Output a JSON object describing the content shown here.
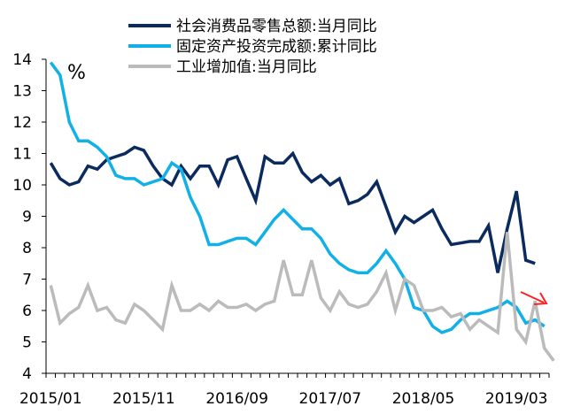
{
  "chart_data": {
    "type": "line",
    "unit": "%",
    "ylim": [
      4,
      14
    ],
    "yticks": [
      4,
      5,
      6,
      7,
      8,
      9,
      10,
      11,
      12,
      13,
      14
    ],
    "x_start": "2015/01",
    "x_end": "2019/06",
    "xtick_labels": [
      "2015/01",
      "2015/11",
      "2016/09",
      "2017/07",
      "2018/05",
      "2019/03"
    ],
    "legend_position": "top",
    "grid": false,
    "series": [
      {
        "name": "社会消费品零售总额:当月同比",
        "color": "#0b2a5e",
        "points": [
          [
            "2015/01",
            10.7
          ],
          [
            "2015/02",
            10.2
          ],
          [
            "2015/03",
            10.0
          ],
          [
            "2015/04",
            10.1
          ],
          [
            "2015/05",
            10.6
          ],
          [
            "2015/06",
            10.5
          ],
          [
            "2015/07",
            10.8
          ],
          [
            "2015/08",
            10.9
          ],
          [
            "2015/09",
            11.0
          ],
          [
            "2015/10",
            11.2
          ],
          [
            "2015/11",
            11.1
          ],
          [
            "2015/12",
            10.6
          ],
          [
            "2016/01",
            10.2
          ],
          [
            "2016/02",
            10.0
          ],
          [
            "2016/03",
            10.6
          ],
          [
            "2016/04",
            10.2
          ],
          [
            "2016/05",
            10.6
          ],
          [
            "2016/06",
            10.6
          ],
          [
            "2016/07",
            10.0
          ],
          [
            "2016/08",
            10.8
          ],
          [
            "2016/09",
            10.9
          ],
          [
            "2016/10",
            10.2
          ],
          [
            "2016/11",
            9.5
          ],
          [
            "2016/12",
            10.9
          ],
          [
            "2017/01",
            10.7
          ],
          [
            "2017/02",
            10.7
          ],
          [
            "2017/03",
            11.0
          ],
          [
            "2017/04",
            10.4
          ],
          [
            "2017/05",
            10.1
          ],
          [
            "2017/06",
            10.3
          ],
          [
            "2017/07",
            10.0
          ],
          [
            "2017/08",
            10.2
          ],
          [
            "2017/09",
            9.4
          ],
          [
            "2017/10",
            9.5
          ],
          [
            "2017/11",
            9.7
          ],
          [
            "2017/12",
            10.1
          ],
          [
            "2018/01",
            9.3
          ],
          [
            "2018/02",
            8.5
          ],
          [
            "2018/03",
            9.0
          ],
          [
            "2018/04",
            8.8
          ],
          [
            "2018/05",
            9.0
          ],
          [
            "2018/06",
            9.2
          ],
          [
            "2018/07",
            8.6
          ],
          [
            "2018/08",
            8.1
          ],
          [
            "2018/09",
            8.15
          ],
          [
            "2018/10",
            8.2
          ],
          [
            "2018/11",
            8.2
          ],
          [
            "2018/12",
            8.7
          ],
          [
            "2019/01",
            7.2
          ],
          [
            "2019/02",
            8.6
          ],
          [
            "2019/03",
            9.8
          ],
          [
            "2019/04",
            7.6
          ],
          [
            "2019/05",
            7.5
          ]
        ]
      },
      {
        "name": "固定资产投资完成额:累计同比",
        "color": "#11b1e8",
        "points": [
          [
            "2015/01",
            13.9
          ],
          [
            "2015/02",
            13.5
          ],
          [
            "2015/03",
            12.0
          ],
          [
            "2015/04",
            11.4
          ],
          [
            "2015/05",
            11.4
          ],
          [
            "2015/06",
            11.2
          ],
          [
            "2015/07",
            10.9
          ],
          [
            "2015/08",
            10.3
          ],
          [
            "2015/09",
            10.2
          ],
          [
            "2015/10",
            10.2
          ],
          [
            "2015/11",
            10.0
          ],
          [
            "2015/12",
            10.1
          ],
          [
            "2016/01",
            10.2
          ],
          [
            "2016/02",
            10.7
          ],
          [
            "2016/03",
            10.5
          ],
          [
            "2016/04",
            9.6
          ],
          [
            "2016/05",
            9.0
          ],
          [
            "2016/06",
            8.1
          ],
          [
            "2016/07",
            8.1
          ],
          [
            "2016/08",
            8.2
          ],
          [
            "2016/09",
            8.3
          ],
          [
            "2016/10",
            8.3
          ],
          [
            "2016/11",
            8.1
          ],
          [
            "2016/12",
            8.5
          ],
          [
            "2017/01",
            8.9
          ],
          [
            "2017/02",
            9.2
          ],
          [
            "2017/03",
            8.9
          ],
          [
            "2017/04",
            8.6
          ],
          [
            "2017/05",
            8.6
          ],
          [
            "2017/06",
            8.3
          ],
          [
            "2017/07",
            7.8
          ],
          [
            "2017/08",
            7.5
          ],
          [
            "2017/09",
            7.3
          ],
          [
            "2017/10",
            7.2
          ],
          [
            "2017/11",
            7.2
          ],
          [
            "2017/12",
            7.5
          ],
          [
            "2018/01",
            7.9
          ],
          [
            "2018/02",
            7.5
          ],
          [
            "2018/03",
            7.0
          ],
          [
            "2018/04",
            6.1
          ],
          [
            "2018/05",
            6.0
          ],
          [
            "2018/06",
            5.5
          ],
          [
            "2018/07",
            5.3
          ],
          [
            "2018/08",
            5.4
          ],
          [
            "2018/09",
            5.7
          ],
          [
            "2018/10",
            5.9
          ],
          [
            "2018/11",
            5.9
          ],
          [
            "2018/12",
            6.0
          ],
          [
            "2019/01",
            6.1
          ],
          [
            "2019/02",
            6.3
          ],
          [
            "2019/03",
            6.1
          ],
          [
            "2019/04",
            5.6
          ],
          [
            "2019/05",
            5.7
          ],
          [
            "2019/06",
            5.5
          ]
        ]
      },
      {
        "name": "工业增加值:当月同比",
        "color": "#bbbbbb",
        "points": [
          [
            "2015/01",
            6.8
          ],
          [
            "2015/02",
            5.6
          ],
          [
            "2015/03",
            5.9
          ],
          [
            "2015/04",
            6.1
          ],
          [
            "2015/05",
            6.8
          ],
          [
            "2015/06",
            6.0
          ],
          [
            "2015/07",
            6.1
          ],
          [
            "2015/08",
            5.7
          ],
          [
            "2015/09",
            5.6
          ],
          [
            "2015/10",
            6.2
          ],
          [
            "2015/11",
            6.0
          ],
          [
            "2015/12",
            5.7
          ],
          [
            "2016/01",
            5.4
          ],
          [
            "2016/02",
            6.8
          ],
          [
            "2016/03",
            6.0
          ],
          [
            "2016/04",
            6.0
          ],
          [
            "2016/05",
            6.2
          ],
          [
            "2016/06",
            6.0
          ],
          [
            "2016/07",
            6.3
          ],
          [
            "2016/08",
            6.1
          ],
          [
            "2016/09",
            6.1
          ],
          [
            "2016/10",
            6.2
          ],
          [
            "2016/11",
            6.0
          ],
          [
            "2016/12",
            6.2
          ],
          [
            "2017/01",
            6.3
          ],
          [
            "2017/02",
            7.6
          ],
          [
            "2017/03",
            6.5
          ],
          [
            "2017/04",
            6.5
          ],
          [
            "2017/05",
            7.6
          ],
          [
            "2017/06",
            6.4
          ],
          [
            "2017/07",
            6.0
          ],
          [
            "2017/08",
            6.6
          ],
          [
            "2017/09",
            6.2
          ],
          [
            "2017/10",
            6.1
          ],
          [
            "2017/11",
            6.2
          ],
          [
            "2017/12",
            6.6
          ],
          [
            "2018/01",
            7.2
          ],
          [
            "2018/02",
            6.0
          ],
          [
            "2018/03",
            7.0
          ],
          [
            "2018/04",
            6.8
          ],
          [
            "2018/05",
            6.0
          ],
          [
            "2018/06",
            6.0
          ],
          [
            "2018/07",
            6.1
          ],
          [
            "2018/08",
            5.8
          ],
          [
            "2018/09",
            5.9
          ],
          [
            "2018/10",
            5.4
          ],
          [
            "2018/11",
            5.7
          ],
          [
            "2018/12",
            5.5
          ],
          [
            "2019/01",
            5.3
          ],
          [
            "2019/02",
            8.5
          ],
          [
            "2019/03",
            5.4
          ],
          [
            "2019/04",
            5.0
          ],
          [
            "2019/05",
            6.3
          ],
          [
            "2019/06",
            4.8
          ],
          [
            "2019/07",
            4.4
          ]
        ]
      }
    ]
  }
}
